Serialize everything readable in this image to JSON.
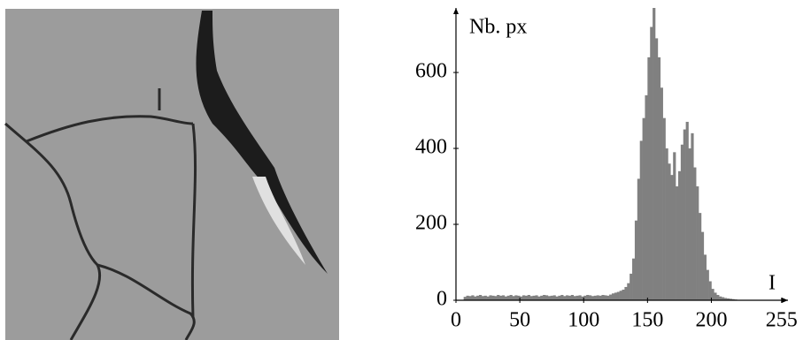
{
  "chart_data": {
    "type": "histogram",
    "ylabel": "Nb. px",
    "xlabel": "I",
    "color": "#808080",
    "xlim": [
      0,
      260
    ],
    "ylim": [
      0,
      770
    ],
    "xticks": [
      0,
      50,
      100,
      150,
      200,
      255
    ],
    "yticks": [
      0,
      200,
      400,
      600
    ],
    "bins": [
      6,
      8,
      10,
      12,
      14,
      16,
      18,
      20,
      22,
      24,
      26,
      28,
      30,
      32,
      34,
      36,
      38,
      40,
      42,
      44,
      46,
      48,
      50,
      52,
      54,
      56,
      58,
      60,
      62,
      64,
      66,
      68,
      70,
      72,
      74,
      76,
      78,
      80,
      82,
      84,
      86,
      88,
      90,
      92,
      94,
      96,
      98,
      100,
      102,
      104,
      106,
      108,
      110,
      112,
      114,
      116,
      118,
      120,
      122,
      124,
      126,
      128,
      130,
      132,
      134,
      136,
      138,
      140,
      142,
      144,
      146,
      148,
      150,
      152,
      154,
      156,
      158,
      160,
      162,
      164,
      166,
      168,
      170,
      172,
      174,
      176,
      178,
      180,
      182,
      184,
      186,
      188,
      190,
      192,
      194,
      196,
      198,
      200,
      202,
      204,
      206,
      208,
      210,
      212,
      214,
      216,
      218,
      220
    ],
    "counts": [
      9,
      12,
      11,
      13,
      10,
      12,
      14,
      11,
      12,
      10,
      13,
      12,
      11,
      14,
      12,
      13,
      10,
      12,
      14,
      11,
      13,
      12,
      10,
      13,
      12,
      14,
      11,
      12,
      13,
      10,
      12,
      14,
      13,
      11,
      12,
      13,
      10,
      12,
      14,
      11,
      13,
      12,
      14,
      11,
      12,
      13,
      10,
      12,
      14,
      13,
      11,
      12,
      13,
      12,
      14,
      13,
      12,
      15,
      18,
      20,
      22,
      25,
      28,
      35,
      45,
      70,
      110,
      210,
      320,
      420,
      480,
      540,
      640,
      720,
      770,
      690,
      640,
      560,
      480,
      400,
      360,
      330,
      390,
      300,
      340,
      410,
      450,
      470,
      400,
      440,
      350,
      300,
      230,
      180,
      120,
      80,
      50,
      30,
      20,
      14,
      10,
      8,
      6,
      5,
      4,
      3,
      2
    ]
  }
}
